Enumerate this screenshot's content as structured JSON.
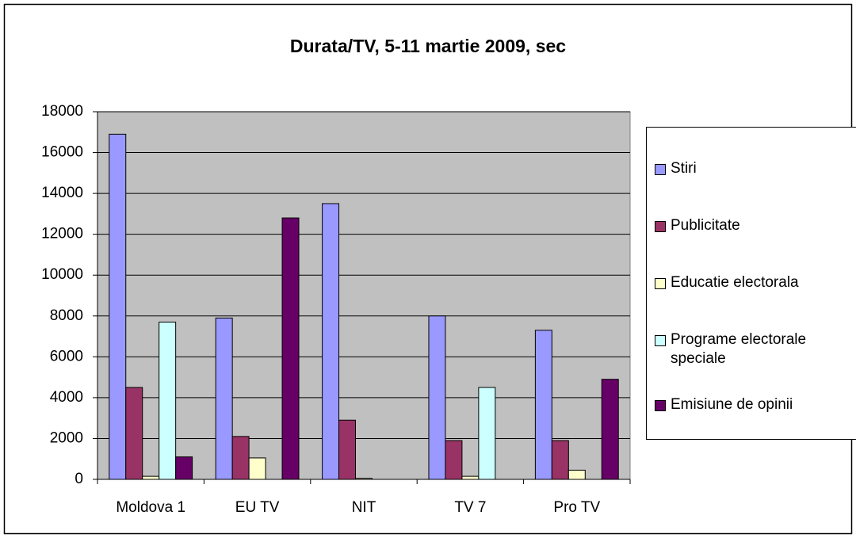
{
  "chart_data": {
    "type": "bar",
    "title": "Durata/TV, 5-11 martie 2009, sec",
    "categories": [
      "Moldova 1",
      "EU TV",
      "NIT",
      "TV 7",
      "Pro TV"
    ],
    "series": [
      {
        "name": "Stiri",
        "color": "#9999ff",
        "values": [
          16900,
          7900,
          13500,
          8000,
          7300
        ]
      },
      {
        "name": "Publicitate",
        "color": "#993366",
        "values": [
          4500,
          2100,
          2900,
          1900,
          1900
        ]
      },
      {
        "name": "Educatie electorala",
        "color": "#ffffcc",
        "values": [
          150,
          1050,
          50,
          150,
          450
        ]
      },
      {
        "name": "Programe electorale speciale",
        "color": "#ccffff",
        "values": [
          7700,
          0,
          0,
          4500,
          0
        ]
      },
      {
        "name": "Emisiune de opinii",
        "color": "#660066",
        "values": [
          1100,
          12800,
          0,
          0,
          4900
        ]
      }
    ],
    "ylim": [
      0,
      18000
    ],
    "yticks": [
      0,
      2000,
      4000,
      6000,
      8000,
      10000,
      12000,
      14000,
      16000,
      18000
    ],
    "grid": true,
    "legend": "right"
  }
}
